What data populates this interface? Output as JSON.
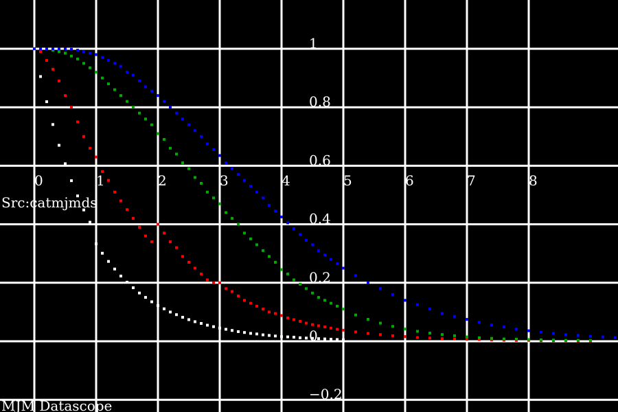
{
  "chart_data": {
    "type": "scatter",
    "title": "",
    "xlabel": "",
    "ylabel": "",
    "xlim": [
      -0.6,
      9.4
    ],
    "ylim": [
      -0.2,
      1.15
    ],
    "grid": true,
    "x_ticks": [
      {
        "value": 0,
        "label": "0"
      },
      {
        "value": 1,
        "label": "1"
      },
      {
        "value": 2,
        "label": "2"
      },
      {
        "value": 3,
        "label": "3"
      },
      {
        "value": 4,
        "label": "4"
      },
      {
        "value": 5,
        "label": "5"
      },
      {
        "value": 6,
        "label": "6"
      },
      {
        "value": 7,
        "label": "7"
      },
      {
        "value": 8,
        "label": "8"
      }
    ],
    "y_ticks": [
      {
        "value": 1,
        "label": "1"
      },
      {
        "value": 0.8,
        "label": "0.8"
      },
      {
        "value": 0.6,
        "label": "0.6"
      },
      {
        "value": 0.4,
        "label": "0.4"
      },
      {
        "value": 0.2,
        "label": "0.2"
      },
      {
        "value": 0,
        "label": "0"
      },
      {
        "value": -0.2,
        "label": "−0.2"
      }
    ],
    "series": [
      {
        "color": "#ffffff",
        "x": [
          0,
          0.1,
          0.2,
          0.3,
          0.4,
          0.5,
          0.6,
          0.7,
          0.8,
          0.9,
          1.0,
          1.1,
          1.2,
          1.3,
          1.4,
          1.5,
          1.6,
          1.7,
          1.8,
          1.9,
          2.0,
          2.1,
          2.2,
          2.3,
          2.4,
          2.5,
          2.6,
          2.7,
          2.8,
          2.9,
          3.0,
          3.1,
          3.2,
          3.3,
          3.4,
          3.5,
          3.6,
          3.7,
          3.8,
          3.9,
          4.0,
          4.1,
          4.2,
          4.3,
          4.4,
          4.5,
          4.6,
          4.7,
          4.8,
          4.9,
          5.0
        ],
        "y": [
          1.0,
          0.905,
          0.819,
          0.741,
          0.67,
          0.607,
          0.549,
          0.497,
          0.449,
          0.407,
          0.333,
          0.301,
          0.273,
          0.247,
          0.223,
          0.202,
          0.183,
          0.165,
          0.15,
          0.135,
          0.122,
          0.111,
          0.1,
          0.091,
          0.082,
          0.074,
          0.067,
          0.061,
          0.055,
          0.05,
          0.045,
          0.041,
          0.037,
          0.033,
          0.03,
          0.027,
          0.025,
          0.022,
          0.02,
          0.018,
          0.016,
          0.015,
          0.014,
          0.012,
          0.011,
          0.01,
          0.009,
          0.008,
          0.007,
          0.006,
          0.005
        ]
      },
      {
        "color": "#ff0000",
        "x": [
          0,
          0.1,
          0.2,
          0.3,
          0.4,
          0.5,
          0.6,
          0.7,
          0.8,
          0.9,
          1.0,
          1.1,
          1.2,
          1.3,
          1.4,
          1.5,
          1.6,
          1.7,
          1.8,
          1.9,
          2.0,
          2.1,
          2.2,
          2.3,
          2.4,
          2.5,
          2.6,
          2.7,
          2.8,
          2.9,
          3.0,
          3.1,
          3.2,
          3.3,
          3.4,
          3.5,
          3.6,
          3.7,
          3.8,
          3.9,
          4.0,
          4.1,
          4.2,
          4.3,
          4.4,
          4.5,
          4.6,
          4.7,
          4.8,
          4.9,
          5.0,
          5.2,
          5.4,
          5.6,
          5.8,
          6.0,
          6.2,
          6.4,
          6.6,
          6.8,
          7.0,
          7.2,
          7.4,
          7.6,
          7.8,
          8.0,
          8.2,
          8.4,
          8.6,
          8.8,
          9.0
        ],
        "y": [
          1.0,
          0.99,
          0.96,
          0.93,
          0.89,
          0.84,
          0.8,
          0.75,
          0.7,
          0.66,
          0.63,
          0.58,
          0.55,
          0.51,
          0.48,
          0.45,
          0.42,
          0.39,
          0.36,
          0.34,
          0.4,
          0.37,
          0.34,
          0.32,
          0.29,
          0.27,
          0.25,
          0.23,
          0.21,
          0.2,
          0.2,
          0.18,
          0.17,
          0.155,
          0.14,
          0.13,
          0.12,
          0.11,
          0.1,
          0.095,
          0.088,
          0.08,
          0.074,
          0.068,
          0.062,
          0.057,
          0.053,
          0.049,
          0.045,
          0.041,
          0.038,
          0.032,
          0.027,
          0.023,
          0.019,
          0.016,
          0.013,
          0.011,
          0.009,
          0.008,
          0.007,
          0.006,
          0.005,
          0.004,
          0.003,
          0.003,
          0.002,
          0.002,
          0.002,
          0.001,
          0.001
        ]
      },
      {
        "color": "#00aa00",
        "x": [
          0,
          0.1,
          0.2,
          0.3,
          0.4,
          0.5,
          0.6,
          0.7,
          0.8,
          0.9,
          1.0,
          1.1,
          1.2,
          1.3,
          1.4,
          1.5,
          1.6,
          1.7,
          1.8,
          1.9,
          2.0,
          2.1,
          2.2,
          2.3,
          2.4,
          2.5,
          2.6,
          2.7,
          2.8,
          2.9,
          3.0,
          3.1,
          3.2,
          3.3,
          3.4,
          3.5,
          3.6,
          3.7,
          3.8,
          3.9,
          4.0,
          4.1,
          4.2,
          4.3,
          4.4,
          4.5,
          4.6,
          4.7,
          4.8,
          4.9,
          5.0,
          5.2,
          5.4,
          5.6,
          5.8,
          6.0,
          6.2,
          6.4,
          6.6,
          6.8,
          7.0,
          7.2,
          7.4,
          7.6,
          7.8,
          8.0,
          8.2,
          8.4,
          8.6,
          8.8,
          9.0
        ],
        "y": [
          1.0,
          1.0,
          1.0,
          0.995,
          0.99,
          0.985,
          0.975,
          0.965,
          0.95,
          0.935,
          0.92,
          0.9,
          0.88,
          0.86,
          0.84,
          0.82,
          0.8,
          0.78,
          0.76,
          0.74,
          0.71,
          0.69,
          0.66,
          0.64,
          0.61,
          0.59,
          0.56,
          0.54,
          0.51,
          0.49,
          0.47,
          0.44,
          0.42,
          0.4,
          0.37,
          0.35,
          0.33,
          0.31,
          0.29,
          0.27,
          0.245,
          0.23,
          0.21,
          0.195,
          0.18,
          0.165,
          0.15,
          0.14,
          0.13,
          0.12,
          0.11,
          0.09,
          0.075,
          0.062,
          0.051,
          0.042,
          0.034,
          0.028,
          0.023,
          0.019,
          0.015,
          0.012,
          0.01,
          0.008,
          0.007,
          0.006,
          0.005,
          0.004,
          0.003,
          0.003,
          0.002
        ]
      },
      {
        "color": "#0000ff",
        "x": [
          0,
          0.1,
          0.2,
          0.3,
          0.4,
          0.5,
          0.6,
          0.7,
          0.8,
          0.9,
          1.0,
          1.1,
          1.2,
          1.3,
          1.4,
          1.5,
          1.6,
          1.7,
          1.8,
          1.9,
          2.0,
          2.1,
          2.2,
          2.3,
          2.4,
          2.5,
          2.6,
          2.7,
          2.8,
          2.9,
          3.0,
          3.1,
          3.2,
          3.3,
          3.4,
          3.5,
          3.6,
          3.7,
          3.8,
          3.9,
          4.0,
          4.1,
          4.2,
          4.3,
          4.4,
          4.5,
          4.6,
          4.7,
          4.8,
          4.9,
          5.0,
          5.2,
          5.4,
          5.6,
          5.8,
          6.0,
          6.2,
          6.4,
          6.6,
          6.8,
          7.0,
          7.2,
          7.4,
          7.6,
          7.8,
          8.0,
          8.2,
          8.4,
          8.6,
          8.8,
          9.0,
          9.2,
          9.4
        ],
        "y": [
          1.0,
          1.0,
          1.0,
          1.0,
          1.0,
          1.0,
          0.998,
          0.995,
          0.99,
          0.985,
          0.98,
          0.97,
          0.96,
          0.95,
          0.94,
          0.92,
          0.91,
          0.89,
          0.87,
          0.855,
          0.84,
          0.82,
          0.8,
          0.78,
          0.76,
          0.74,
          0.72,
          0.7,
          0.675,
          0.655,
          0.635,
          0.61,
          0.59,
          0.57,
          0.55,
          0.53,
          0.51,
          0.49,
          0.465,
          0.445,
          0.425,
          0.405,
          0.385,
          0.365,
          0.345,
          0.33,
          0.31,
          0.295,
          0.28,
          0.265,
          0.25,
          0.225,
          0.2,
          0.18,
          0.16,
          0.14,
          0.125,
          0.11,
          0.095,
          0.085,
          0.075,
          0.065,
          0.056,
          0.049,
          0.042,
          0.036,
          0.031,
          0.027,
          0.023,
          0.02,
          0.017,
          0.015,
          0.013
        ]
      }
    ]
  },
  "annotations": {
    "source": "Src:catmjmds",
    "footer": "MJM Datascope"
  }
}
